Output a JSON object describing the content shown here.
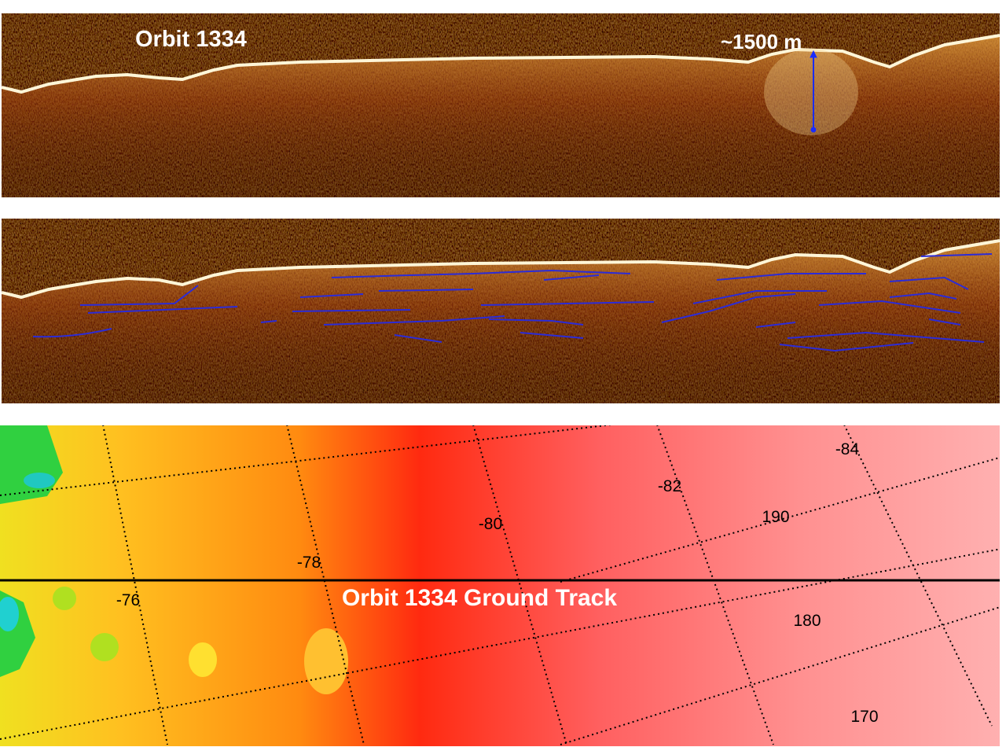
{
  "radargram_top": {
    "label": "Orbit 1334",
    "scale_annotation": "~1500 m",
    "scale_arrow_color": "#1a2cff"
  },
  "radargram_bottom": {
    "trace_color": "#2b2bd8"
  },
  "map": {
    "track_label": "Orbit 1334 Ground Track",
    "latitude_labels": [
      "-76",
      "-78",
      "-80",
      "-82",
      "-84"
    ],
    "longitude_labels": [
      "170",
      "180",
      "190"
    ],
    "color_scale": [
      "#0fd0d0",
      "#2ad82a",
      "#f0f020",
      "#ff9a10",
      "#ff2a10",
      "#ff8080",
      "#ffb0b0"
    ]
  }
}
